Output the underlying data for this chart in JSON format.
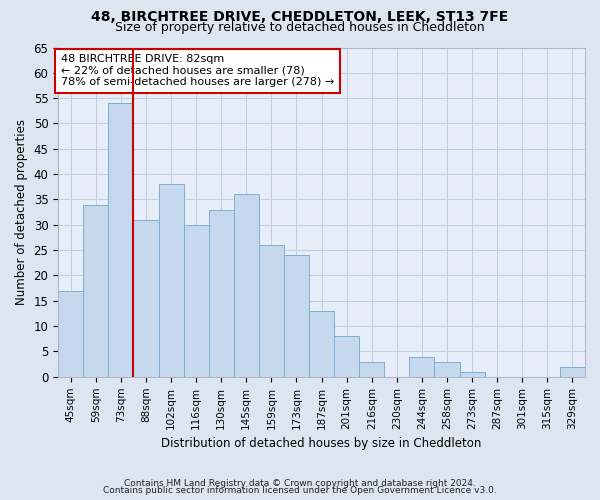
{
  "title1": "48, BIRCHTREE DRIVE, CHEDDLETON, LEEK, ST13 7FE",
  "title2": "Size of property relative to detached houses in Cheddleton",
  "xlabel": "Distribution of detached houses by size in Cheddleton",
  "ylabel": "Number of detached properties",
  "bar_labels": [
    "45sqm",
    "59sqm",
    "73sqm",
    "88sqm",
    "102sqm",
    "116sqm",
    "130sqm",
    "145sqm",
    "159sqm",
    "173sqm",
    "187sqm",
    "201sqm",
    "216sqm",
    "230sqm",
    "244sqm",
    "258sqm",
    "273sqm",
    "287sqm",
    "301sqm",
    "315sqm",
    "329sqm"
  ],
  "bar_values": [
    17,
    34,
    54,
    31,
    38,
    30,
    33,
    36,
    26,
    24,
    13,
    8,
    3,
    0,
    4,
    3,
    1,
    0,
    0,
    0,
    2
  ],
  "bar_color": "#c5d8ed",
  "bar_edge_color": "#7aafd4",
  "vline_x_idx": 2,
  "vline_color": "#cc0000",
  "ylim": [
    0,
    65
  ],
  "yticks": [
    0,
    5,
    10,
    15,
    20,
    25,
    30,
    35,
    40,
    45,
    50,
    55,
    60,
    65
  ],
  "annotation_text": "48 BIRCHTREE DRIVE: 82sqm\n← 22% of detached houses are smaller (78)\n78% of semi-detached houses are larger (278) →",
  "annotation_box_color": "white",
  "annotation_box_edge": "#cc0000",
  "footer1": "Contains HM Land Registry data © Crown copyright and database right 2024.",
  "footer2": "Contains public sector information licensed under the Open Government Licence v3.0.",
  "bg_color": "#dde6f0",
  "plot_bg_color": "#e8eef7",
  "grid_color": "#c0cce0"
}
